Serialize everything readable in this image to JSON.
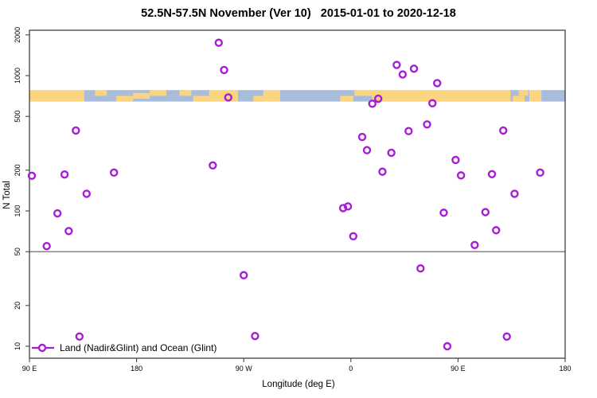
{
  "title": "52.5N-57.5N November (Ver 10)   2015-01-01 to 2020-12-18",
  "legend": {
    "label": "Land (Nadir&Glint) and Ocean (Glint)"
  },
  "colors": {
    "point": "#A81CD6",
    "land": "#FAD47F",
    "ocean": "#A8BDDC",
    "axis": "#333333",
    "reference_line": "#444444",
    "text": "#000000"
  },
  "axes": {
    "x": {
      "label": "Longitude (deg E)",
      "ticks": [
        {
          "value": 90,
          "label": "90 E"
        },
        {
          "value": 180,
          "label": "180"
        },
        {
          "value": 270,
          "label": "90 W"
        },
        {
          "value": 360,
          "label": "0"
        },
        {
          "value": 450,
          "label": "90 E"
        },
        {
          "value": 540,
          "label": "180"
        }
      ]
    },
    "y": {
      "label": "N Total",
      "ticks": [
        {
          "value": 2000,
          "label": "2000"
        },
        {
          "value": 1000,
          "label": "1000"
        },
        {
          "value": 500,
          "label": "500"
        },
        {
          "value": 200,
          "label": "200"
        },
        {
          "value": 100,
          "label": "100"
        },
        {
          "value": 50,
          "label": "50"
        },
        {
          "value": 20,
          "label": "20"
        },
        {
          "value": 10,
          "label": "10"
        }
      ]
    }
  },
  "reference_line": {
    "n_total": 50
  },
  "map_band": {
    "n_range": [
      643,
      782
    ],
    "segments": [
      {
        "d1": 90,
        "d2": 136,
        "fill": "land"
      },
      {
        "d1": 136,
        "d2": 241,
        "fill": "ocean"
      },
      {
        "d1": 241,
        "d2": 265,
        "fill": "land"
      },
      {
        "d1": 265,
        "d2": 286.5,
        "fill": "ocean"
      },
      {
        "d1": 286.5,
        "d2": 300.5,
        "fill": "land"
      },
      {
        "d1": 300.5,
        "d2": 378,
        "fill": "ocean"
      },
      {
        "d1": 378,
        "d2": 494,
        "fill": "land"
      },
      {
        "d1": 494,
        "d2": 510,
        "fill": "ocean"
      },
      {
        "d1": 510,
        "d2": 520,
        "fill": "land"
      },
      {
        "d1": 520,
        "d2": 540,
        "fill": "ocean"
      }
    ],
    "land_patches": [
      {
        "d1": 145,
        "d2": 155,
        "half": "top"
      },
      {
        "d1": 163,
        "d2": 177,
        "half": "bottom"
      },
      {
        "d1": 177,
        "d2": 191,
        "half": "mid"
      },
      {
        "d1": 191,
        "d2": 205,
        "half": "top"
      },
      {
        "d1": 216,
        "d2": 226,
        "half": "top"
      },
      {
        "d1": 227.5,
        "d2": 241,
        "half": "bottom"
      },
      {
        "d1": 278,
        "d2": 286.5,
        "half": "bottom"
      },
      {
        "d1": 351,
        "d2": 362,
        "half": "bottom"
      },
      {
        "d1": 363,
        "d2": 378,
        "half": "top"
      },
      {
        "d1": 496,
        "d2": 506,
        "half": "bottom"
      },
      {
        "d1": 501,
        "d2": 509,
        "half": "top"
      }
    ]
  },
  "chart_data": {
    "type": "scatter",
    "title": "52.5N-57.5N November (Ver 10)   2015-01-01 to 2020-12-18",
    "xlabel": "Longitude (deg E)",
    "ylabel": "N Total",
    "x_axis": {
      "xlim": [
        90,
        540
      ],
      "note": "longitude axis runs eastward from 90E, wrapping past 180 (=180), 270 (=90W), 360 (=0), 450 (=90E) to 540 (=180)"
    },
    "y_axis": {
      "scale": "log",
      "ylim": [
        9,
        2300
      ]
    },
    "grid": "off",
    "legend_position": "bottom-left",
    "series": [
      {
        "name": "Land (Nadir&Glint) and Ocean (Glint)",
        "marker": "open-circle",
        "color": "#A81CD6",
        "points": [
          [
            249,
            1750
          ],
          [
            253.5,
            1100
          ],
          [
            257,
            690
          ],
          [
            129,
            393
          ],
          [
            244,
            217
          ],
          [
            161,
            192
          ],
          [
            119.5,
            186
          ],
          [
            92,
            182
          ],
          [
            138,
            134
          ],
          [
            398.5,
            1200
          ],
          [
            413,
            1125
          ],
          [
            403.5,
            1020
          ],
          [
            432.5,
            880
          ],
          [
            383,
            675
          ],
          [
            378,
            620
          ],
          [
            428.5,
            625
          ],
          [
            424,
            436
          ],
          [
            408.5,
            389
          ],
          [
            488,
            393
          ],
          [
            369.5,
            352
          ],
          [
            373.5,
            281
          ],
          [
            394,
            269
          ],
          [
            448,
            238
          ],
          [
            386.5,
            195
          ],
          [
            452.5,
            183
          ],
          [
            478.5,
            187
          ],
          [
            519,
            192
          ],
          [
            497.5,
            134
          ],
          [
            113.5,
            96
          ],
          [
            123,
            71
          ],
          [
            104.5,
            55
          ],
          [
            270,
            33.5
          ],
          [
            132,
            11.8
          ],
          [
            279.5,
            11.9
          ],
          [
            353.5,
            105
          ],
          [
            357.5,
            108
          ],
          [
            438,
            97
          ],
          [
            473,
            98
          ],
          [
            482,
            72
          ],
          [
            362,
            65
          ],
          [
            464,
            56
          ],
          [
            418.5,
            37.6
          ],
          [
            491,
            11.8
          ],
          [
            441,
            10
          ]
        ]
      }
    ]
  }
}
